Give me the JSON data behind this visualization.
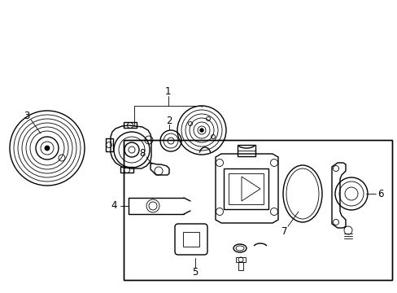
{
  "background_color": "#ffffff",
  "line_color": "#000000",
  "lw": 1.0,
  "tlw": 0.6,
  "figsize": [
    4.89,
    3.6
  ],
  "dpi": 100,
  "label_fs": 8.5
}
